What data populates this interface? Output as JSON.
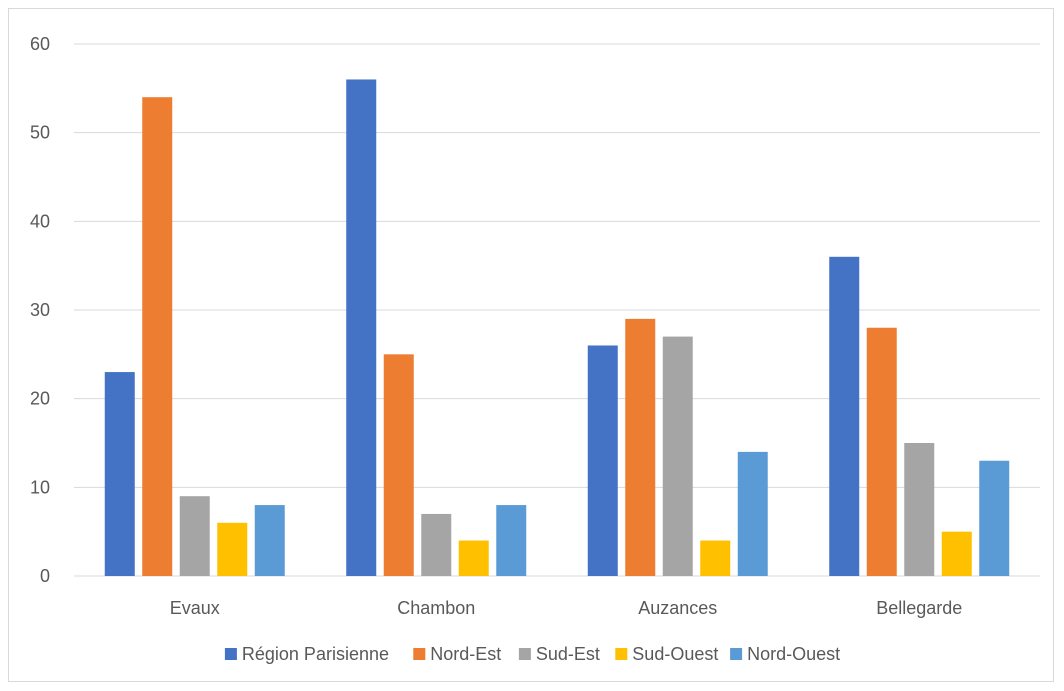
{
  "chart_data": {
    "type": "bar",
    "title": "",
    "xlabel": "",
    "ylabel": "",
    "ylim": [
      0,
      60
    ],
    "yticks": [
      0,
      10,
      20,
      30,
      40,
      50,
      60
    ],
    "grid": true,
    "legend_position": "bottom",
    "categories": [
      "Evaux",
      "Chambon",
      "Auzances",
      "Bellegarde"
    ],
    "series": [
      {
        "name": "Région Parisienne",
        "color": "#4472C4",
        "values": [
          23,
          56,
          26,
          36
        ]
      },
      {
        "name": "Nord-Est",
        "color": "#ED7D31",
        "values": [
          54,
          25,
          29,
          28
        ]
      },
      {
        "name": "Sud-Est",
        "color": "#A5A5A5",
        "values": [
          9,
          7,
          27,
          15
        ]
      },
      {
        "name": "Sud-Ouest",
        "color": "#FFC000",
        "values": [
          6,
          4,
          4,
          5
        ]
      },
      {
        "name": "Nord-Ouest",
        "color": "#5B9BD5",
        "values": [
          8,
          8,
          14,
          13
        ]
      }
    ]
  }
}
